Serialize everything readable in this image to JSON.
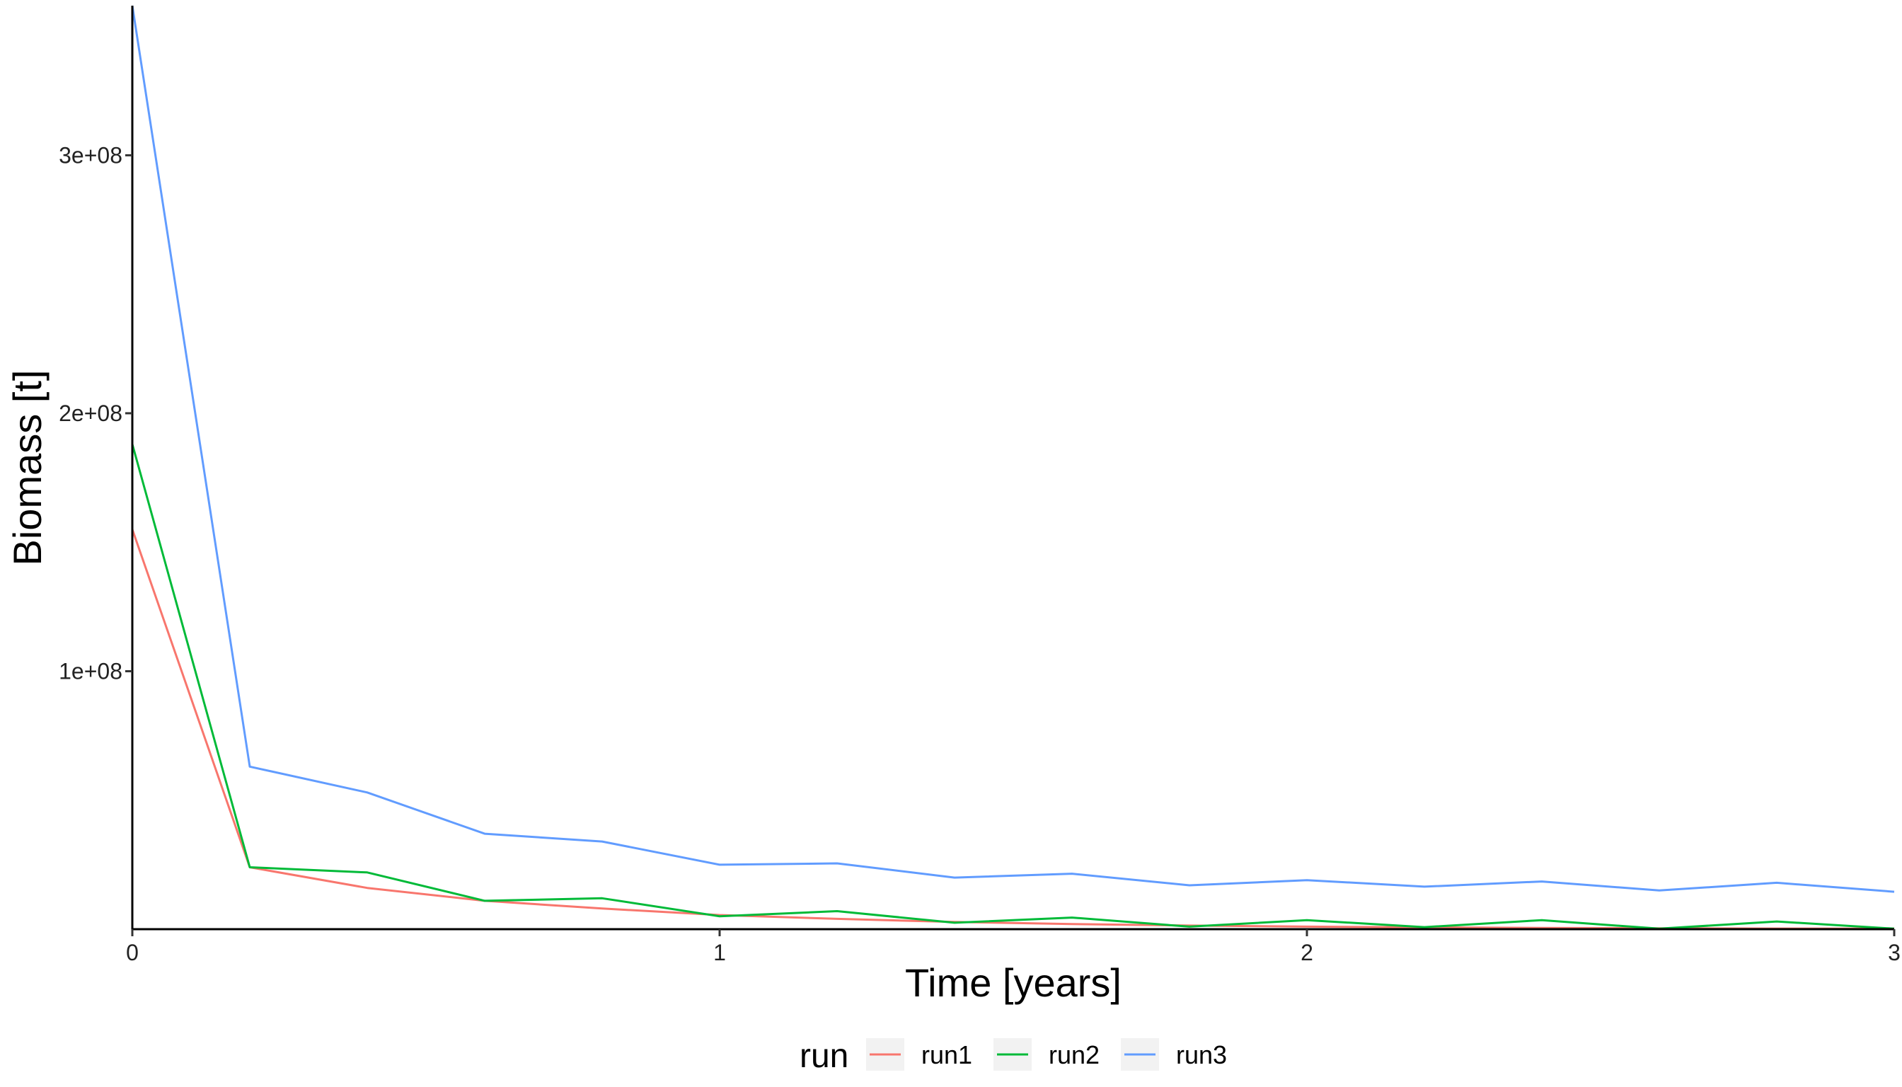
{
  "chart_data": {
    "type": "line",
    "xlabel": "Time [years]",
    "ylabel": "Biomass [t]",
    "xlim": [
      0,
      3
    ],
    "ylim": [
      0,
      358000000.0
    ],
    "x_ticks": [
      0,
      1,
      2,
      3
    ],
    "x_tick_labels": [
      "0",
      "1",
      "2",
      "3"
    ],
    "y_ticks": [
      100000000.0,
      200000000.0,
      300000000.0
    ],
    "y_tick_labels": [
      "1e+08",
      "2e+08",
      "3e+08"
    ],
    "grid": false,
    "legend": {
      "title": "run",
      "position": "bottom"
    },
    "x": [
      0,
      0.2,
      0.4,
      0.6,
      0.8,
      1.0,
      1.2,
      1.4,
      1.6,
      1.8,
      2.0,
      2.2,
      2.4,
      2.6,
      2.8,
      3.0
    ],
    "series": [
      {
        "name": "run1",
        "color": "#F8766D",
        "values": [
          155000000.0,
          24000000.0,
          16000000.0,
          11000000.0,
          8000000.0,
          5500000.0,
          4000000.0,
          2800000.0,
          2000000.0,
          1400000.0,
          1000000.0,
          700000.0,
          500000.0,
          350000.0,
          250000.0,
          180000.0
        ]
      },
      {
        "name": "run2",
        "color": "#00BA38",
        "values": [
          188000000.0,
          24000000.0,
          22000000.0,
          11000000.0,
          12000000.0,
          5000000.0,
          7000000.0,
          2500000.0,
          4500000.0,
          1000000.0,
          3500000.0,
          800000.0,
          3500000.0,
          200000.0,
          3000000.0,
          200000.0
        ]
      },
      {
        "name": "run3",
        "color": "#619CFF",
        "values": [
          358000000.0,
          63000000.0,
          53000000.0,
          37000000.0,
          34000000.0,
          25000000.0,
          25500000.0,
          20000000.0,
          21500000.0,
          17000000.0,
          19000000.0,
          16500000.0,
          18500000.0,
          15000000.0,
          18000000.0,
          14500000.0
        ]
      }
    ]
  }
}
